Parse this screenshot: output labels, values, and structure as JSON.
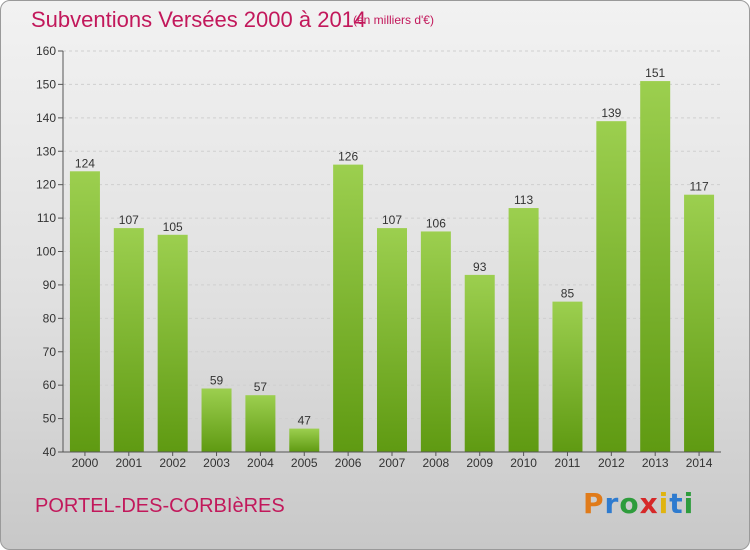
{
  "header": {
    "title": "Subventions Versées 2000 à 2014",
    "subtitle": "(en milliers d'€)"
  },
  "footer": {
    "commune": "PORTEL-DES-CORBIèRES",
    "logo": {
      "letters": [
        "P",
        "r",
        "o",
        "x",
        "i",
        "t",
        "i"
      ],
      "colors": [
        "#e07b1a",
        "#2e7bcf",
        "#2e9c3c",
        "#d62828",
        "#e0b40f",
        "#2e7bcf",
        "#2e9c3c"
      ]
    }
  },
  "colors": {
    "bar_light": "#9ccf4f",
    "bar_dark": "#5f9a12",
    "axis": "#555555",
    "grid": "#cfcfcf",
    "text": "#333333"
  },
  "chart_data": {
    "type": "bar",
    "title": "Subventions Versées 2000 à 2014",
    "subtitle": "(en milliers d'€)",
    "categories": [
      "2000",
      "2001",
      "2002",
      "2003",
      "2004",
      "2005",
      "2006",
      "2007",
      "2008",
      "2009",
      "2010",
      "2011",
      "2012",
      "2013",
      "2014"
    ],
    "values": [
      124,
      107,
      105,
      59,
      57,
      47,
      126,
      107,
      106,
      93,
      113,
      85,
      139,
      151,
      117
    ],
    "ylim": [
      40,
      160
    ],
    "yticks": [
      40,
      50,
      60,
      70,
      80,
      90,
      100,
      110,
      120,
      130,
      140,
      150,
      160
    ],
    "grid": "horizontal dashed",
    "xlabel": "",
    "ylabel": ""
  }
}
